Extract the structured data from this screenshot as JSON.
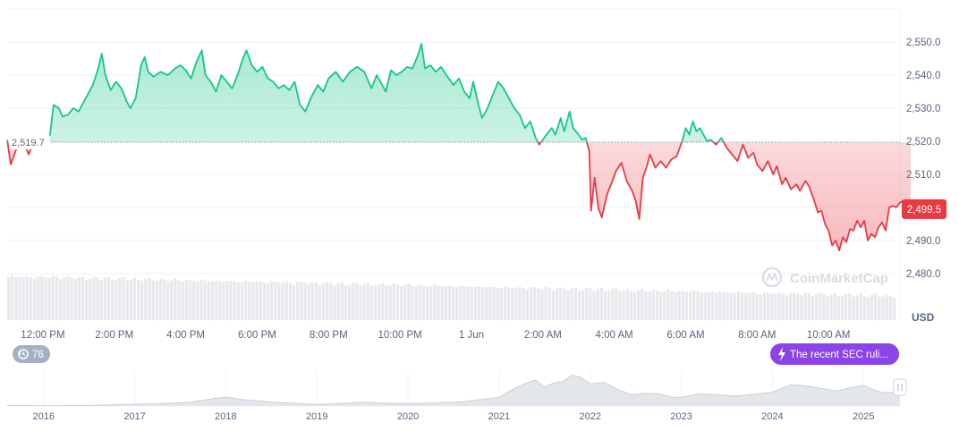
{
  "chart_data": {
    "type": "area",
    "currency": "USD",
    "ylim": [
      2476,
      2560
    ],
    "y_ticks": [
      "2,480.0",
      "2,490.0",
      "2,500.0",
      "2,510.0",
      "2,520.0",
      "2,530.0",
      "2,540.0",
      "2,550.0"
    ],
    "y_tick_values": [
      2480,
      2490,
      2500,
      2510,
      2520,
      2530,
      2540,
      2550
    ],
    "x_ticks": [
      "12:00 PM",
      "2:00 PM",
      "4:00 PM",
      "6:00 PM",
      "8:00 PM",
      "10:00 PM",
      "1 Jun",
      "2:00 AM",
      "4:00 AM",
      "6:00 AM",
      "8:00 AM",
      "10:00 AM"
    ],
    "x_tick_hours": [
      1,
      3,
      5,
      7,
      9,
      11,
      13,
      15,
      17,
      19,
      21,
      23
    ],
    "x_range_hours": [
      0,
      25
    ],
    "baseline": {
      "value": 2519.7,
      "label": "2,519.7"
    },
    "current": {
      "value": 2499.5,
      "label": "2,499.5"
    },
    "colors": {
      "up": "#16c784",
      "down": "#ea3943",
      "volume": "#e6e8ec",
      "grid": "#eff2f5",
      "accent": "#8c44e8"
    },
    "price_series": [
      [
        0.0,
        2520.5
      ],
      [
        0.1,
        2513
      ],
      [
        0.2,
        2516
      ],
      [
        0.3,
        2519
      ],
      [
        0.45,
        2520
      ],
      [
        0.6,
        2516
      ],
      [
        0.75,
        2520
      ],
      [
        0.9,
        2519.5
      ],
      [
        1.1,
        2519.8
      ],
      [
        1.2,
        2522
      ],
      [
        1.3,
        2531
      ],
      [
        1.45,
        2530
      ],
      [
        1.55,
        2527.5
      ],
      [
        1.7,
        2528
      ],
      [
        1.85,
        2530
      ],
      [
        2.0,
        2529
      ],
      [
        2.2,
        2533
      ],
      [
        2.4,
        2537
      ],
      [
        2.55,
        2542
      ],
      [
        2.65,
        2546.5
      ],
      [
        2.75,
        2540
      ],
      [
        2.9,
        2535.5
      ],
      [
        3.05,
        2538
      ],
      [
        3.2,
        2536
      ],
      [
        3.35,
        2532
      ],
      [
        3.45,
        2530
      ],
      [
        3.6,
        2533
      ],
      [
        3.75,
        2543
      ],
      [
        3.85,
        2545.5
      ],
      [
        3.95,
        2541
      ],
      [
        4.1,
        2539.5
      ],
      [
        4.3,
        2541
      ],
      [
        4.5,
        2540
      ],
      [
        4.7,
        2542
      ],
      [
        4.85,
        2543
      ],
      [
        5.0,
        2541.5
      ],
      [
        5.15,
        2539
      ],
      [
        5.3,
        2544
      ],
      [
        5.45,
        2547.5
      ],
      [
        5.55,
        2540
      ],
      [
        5.7,
        2538
      ],
      [
        5.85,
        2535
      ],
      [
        6.0,
        2540
      ],
      [
        6.15,
        2538
      ],
      [
        6.3,
        2536
      ],
      [
        6.45,
        2540
      ],
      [
        6.6,
        2545
      ],
      [
        6.7,
        2547.5
      ],
      [
        6.85,
        2543
      ],
      [
        7.0,
        2541
      ],
      [
        7.15,
        2542.5
      ],
      [
        7.3,
        2539
      ],
      [
        7.45,
        2538
      ],
      [
        7.6,
        2536
      ],
      [
        7.75,
        2537
      ],
      [
        7.9,
        2535.5
      ],
      [
        8.05,
        2538
      ],
      [
        8.2,
        2531
      ],
      [
        8.35,
        2529
      ],
      [
        8.5,
        2533
      ],
      [
        8.7,
        2537
      ],
      [
        8.85,
        2535
      ],
      [
        9.0,
        2539
      ],
      [
        9.2,
        2541
      ],
      [
        9.4,
        2538
      ],
      [
        9.6,
        2541
      ],
      [
        9.8,
        2542.5
      ],
      [
        10.0,
        2541
      ],
      [
        10.2,
        2536
      ],
      [
        10.35,
        2540
      ],
      [
        10.5,
        2537
      ],
      [
        10.6,
        2535
      ],
      [
        10.75,
        2541.5
      ],
      [
        10.9,
        2540
      ],
      [
        11.05,
        2541
      ],
      [
        11.2,
        2542.5
      ],
      [
        11.35,
        2542
      ],
      [
        11.5,
        2546
      ],
      [
        11.6,
        2549.5
      ],
      [
        11.7,
        2542
      ],
      [
        11.85,
        2543
      ],
      [
        12.0,
        2541
      ],
      [
        12.15,
        2542.5
      ],
      [
        12.3,
        2540
      ],
      [
        12.5,
        2537
      ],
      [
        12.65,
        2539
      ],
      [
        12.8,
        2535
      ],
      [
        12.95,
        2533
      ],
      [
        13.05,
        2538
      ],
      [
        13.2,
        2531
      ],
      [
        13.3,
        2527
      ],
      [
        13.45,
        2530
      ],
      [
        13.6,
        2534
      ],
      [
        13.75,
        2538
      ],
      [
        13.9,
        2536
      ],
      [
        14.05,
        2533
      ],
      [
        14.2,
        2530
      ],
      [
        14.35,
        2528
      ],
      [
        14.5,
        2524
      ],
      [
        14.65,
        2526
      ],
      [
        14.8,
        2521
      ],
      [
        14.9,
        2519
      ],
      [
        15.0,
        2520.5
      ],
      [
        15.1,
        2522
      ],
      [
        15.25,
        2524
      ],
      [
        15.35,
        2522
      ],
      [
        15.5,
        2527
      ],
      [
        15.6,
        2523
      ],
      [
        15.75,
        2529
      ],
      [
        15.85,
        2524
      ],
      [
        16.0,
        2522
      ],
      [
        16.1,
        2520.5
      ],
      [
        16.2,
        2521
      ],
      [
        16.3,
        2517
      ],
      [
        16.35,
        2499
      ],
      [
        16.45,
        2509
      ],
      [
        16.55,
        2500
      ],
      [
        16.65,
        2497
      ],
      [
        16.8,
        2504
      ],
      [
        16.95,
        2508
      ],
      [
        17.05,
        2511
      ],
      [
        17.2,
        2513.5
      ],
      [
        17.35,
        2508
      ],
      [
        17.5,
        2505
      ],
      [
        17.6,
        2502
      ],
      [
        17.7,
        2496.5
      ],
      [
        17.8,
        2509
      ],
      [
        17.9,
        2512
      ],
      [
        18.0,
        2516
      ],
      [
        18.15,
        2512
      ],
      [
        18.3,
        2514
      ],
      [
        18.45,
        2512
      ],
      [
        18.6,
        2514.5
      ],
      [
        18.75,
        2515.5
      ],
      [
        18.9,
        2520
      ],
      [
        19.0,
        2524
      ],
      [
        19.1,
        2522
      ],
      [
        19.2,
        2526
      ],
      [
        19.3,
        2523
      ],
      [
        19.4,
        2524
      ],
      [
        19.5,
        2522
      ],
      [
        19.6,
        2520
      ],
      [
        19.7,
        2520.5
      ],
      [
        19.85,
        2519
      ],
      [
        20.0,
        2521
      ],
      [
        20.15,
        2518
      ],
      [
        20.3,
        2516
      ],
      [
        20.45,
        2514
      ],
      [
        20.6,
        2519
      ],
      [
        20.75,
        2515
      ],
      [
        20.9,
        2516.5
      ],
      [
        21.0,
        2513
      ],
      [
        21.15,
        2511
      ],
      [
        21.3,
        2514
      ],
      [
        21.45,
        2510
      ],
      [
        21.55,
        2512.5
      ],
      [
        21.7,
        2507
      ],
      [
        21.8,
        2509
      ],
      [
        21.95,
        2505.5
      ],
      [
        22.1,
        2507
      ],
      [
        22.2,
        2505
      ],
      [
        22.35,
        2508
      ],
      [
        22.45,
        2506.5
      ],
      [
        22.6,
        2502
      ],
      [
        22.7,
        2498.5
      ],
      [
        22.8,
        2499
      ],
      [
        22.9,
        2495
      ],
      [
        23.0,
        2493
      ],
      [
        23.1,
        2488.5
      ],
      [
        23.2,
        2490
      ],
      [
        23.3,
        2487
      ],
      [
        23.4,
        2491
      ],
      [
        23.5,
        2489.5
      ],
      [
        23.6,
        2493.5
      ],
      [
        23.7,
        2493
      ],
      [
        23.8,
        2496
      ],
      [
        23.9,
        2494
      ],
      [
        24.0,
        2496
      ],
      [
        24.1,
        2490
      ],
      [
        24.2,
        2492
      ],
      [
        24.3,
        2491
      ],
      [
        24.4,
        2494
      ],
      [
        24.5,
        2495.5
      ],
      [
        24.6,
        2493
      ],
      [
        24.7,
        2500
      ],
      [
        24.8,
        2500.5
      ],
      [
        24.9,
        2500
      ],
      [
        25.0,
        2501.5
      ],
      [
        25.1,
        2502
      ],
      [
        25.2,
        2500.5
      ],
      [
        25.3,
        2499.5
      ]
    ],
    "navigator": {
      "x_ticks": [
        "2016",
        "2017",
        "2018",
        "2019",
        "2020",
        "2021",
        "2022",
        "2023",
        "2024",
        "2025"
      ],
      "x_tick_years": [
        2016,
        2017,
        2018,
        2019,
        2020,
        2021,
        2022,
        2023,
        2024,
        2025
      ],
      "x_range_years": [
        2015.6,
        2025.4
      ],
      "series": [
        [
          2015.6,
          0.01
        ],
        [
          2016.0,
          0.01
        ],
        [
          2016.5,
          0.02
        ],
        [
          2017.0,
          0.05
        ],
        [
          2017.3,
          0.08
        ],
        [
          2017.6,
          0.12
        ],
        [
          2017.9,
          0.22
        ],
        [
          2018.0,
          0.3
        ],
        [
          2018.2,
          0.22
        ],
        [
          2018.5,
          0.12
        ],
        [
          2018.8,
          0.08
        ],
        [
          2019.0,
          0.05
        ],
        [
          2019.3,
          0.08
        ],
        [
          2019.5,
          0.12
        ],
        [
          2019.8,
          0.09
        ],
        [
          2020.0,
          0.07
        ],
        [
          2020.3,
          0.1
        ],
        [
          2020.6,
          0.14
        ],
        [
          2020.8,
          0.2
        ],
        [
          2021.0,
          0.3
        ],
        [
          2021.15,
          0.55
        ],
        [
          2021.3,
          0.7
        ],
        [
          2021.4,
          0.85
        ],
        [
          2021.5,
          0.62
        ],
        [
          2021.6,
          0.7
        ],
        [
          2021.7,
          0.8
        ],
        [
          2021.8,
          1.0
        ],
        [
          2021.9,
          0.88
        ],
        [
          2022.0,
          0.72
        ],
        [
          2022.15,
          0.78
        ],
        [
          2022.3,
          0.5
        ],
        [
          2022.45,
          0.38
        ],
        [
          2022.6,
          0.42
        ],
        [
          2022.75,
          0.36
        ],
        [
          2022.9,
          0.3
        ],
        [
          2023.0,
          0.3
        ],
        [
          2023.2,
          0.36
        ],
        [
          2023.4,
          0.38
        ],
        [
          2023.6,
          0.33
        ],
        [
          2023.8,
          0.35
        ],
        [
          2024.0,
          0.46
        ],
        [
          2024.2,
          0.7
        ],
        [
          2024.35,
          0.62
        ],
        [
          2024.5,
          0.6
        ],
        [
          2024.7,
          0.5
        ],
        [
          2024.85,
          0.55
        ],
        [
          2025.0,
          0.68
        ],
        [
          2025.1,
          0.55
        ],
        [
          2025.2,
          0.4
        ],
        [
          2025.3,
          0.45
        ],
        [
          2025.4,
          0.46
        ]
      ]
    },
    "watermark": "CoinMarketCap",
    "badge_count": "76",
    "news_text": "The recent SEC ruli..."
  }
}
